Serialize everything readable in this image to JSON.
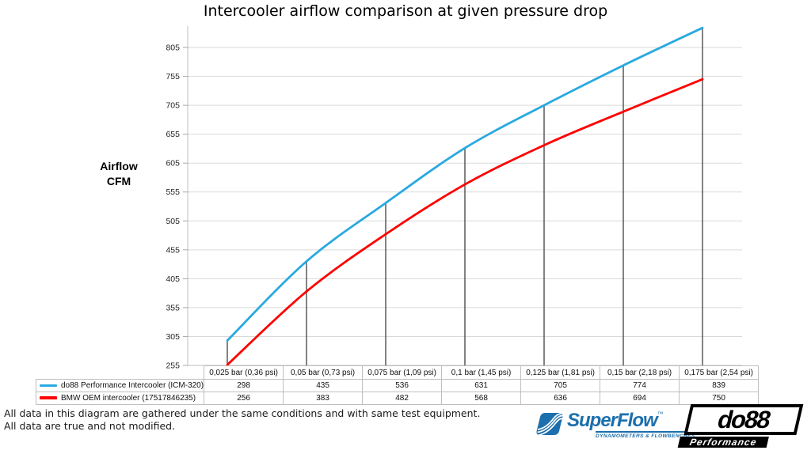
{
  "title": "Intercooler airflow comparison at given pressure drop",
  "y_axis_label": {
    "line1": "Airflow",
    "line2": "CFM"
  },
  "footer": {
    "line1": "All data in this diagram are gathered under the same conditions and with same test equipment.",
    "line2": "All data are true and not modified."
  },
  "logos": {
    "superflow": {
      "name": "SuperFlow",
      "trademark": "™",
      "tagline": "DYNAMOMETERS & FLOWBENCHES",
      "color": "#1C6FAD"
    },
    "do88": {
      "name": "do88",
      "tagline": "Performance"
    }
  },
  "chart_data": {
    "type": "line",
    "title": "Intercooler airflow comparison at given pressure drop",
    "ylabel": "Airflow CFM",
    "categories": [
      "0,025 bar (0,36 psi)",
      "0,05 bar (0,73 psi)",
      "0,075 bar (1,09 psi)",
      "0,1 bar (1,45 psi)",
      "0,125 bar (1,81 psi)",
      "0,15 bar (2,18 psi)",
      "0,175 bar (2,54 psi)"
    ],
    "series": [
      {
        "name": "do88 Performance Intercooler (ICM-320)",
        "color": "#29A9E0",
        "values": [
          298,
          435,
          536,
          631,
          705,
          774,
          839
        ]
      },
      {
        "name": "BMW OEM intercooler (17517846235)",
        "color": "#FF0000",
        "values": [
          256,
          383,
          482,
          568,
          636,
          694,
          750
        ]
      }
    ],
    "yticks": [
      255,
      305,
      355,
      405,
      455,
      505,
      555,
      605,
      655,
      705,
      755,
      805
    ],
    "ylim": [
      255,
      842
    ],
    "grid": true,
    "smooth_lines": true,
    "drop_lines": true,
    "legend_position": "table-left",
    "colors": {
      "gridline": "#D9D9D9",
      "axis": "#BFBFBF",
      "tick": "#A6A6A6",
      "drop_line": "#404040",
      "tick_label": "#262626",
      "table_border": "#BFBFBF"
    }
  }
}
